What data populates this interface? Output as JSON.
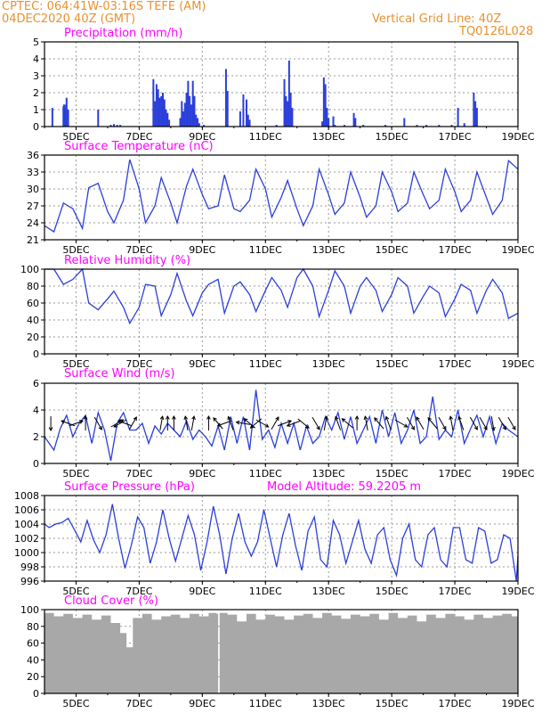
{
  "header": {
    "line1": "CPTEC:   064:41W-03:16S   TEFE (AM)",
    "line2": "04DEC2020 40Z (GMT)",
    "right1": "Vertical Grid Line: 40Z",
    "right2": "TQ0126L028"
  },
  "colors": {
    "header": "#e8912f",
    "title": "#ff00ff",
    "series": "#2b3fd9",
    "cloud": "#a8a8a8",
    "grid": "#9a9a9a"
  },
  "chart_data": [
    {
      "type": "bar",
      "title": "Precipitation (mm/h)",
      "xticks": [
        "5DEC",
        "7DEC",
        "9DEC",
        "11DEC",
        "13DEC",
        "15DEC",
        "17DEC",
        "19DEC"
      ],
      "xrange_days": [
        4.0,
        19.0
      ],
      "ylim": [
        0,
        5
      ],
      "yticks": [
        0,
        1,
        2,
        3,
        4,
        5
      ],
      "grid": true,
      "x": [
        4.25,
        4.6,
        4.62,
        4.65,
        4.68,
        4.7,
        4.75,
        5.7,
        6.1,
        6.2,
        6.3,
        6.4,
        7.45,
        7.5,
        7.55,
        7.6,
        7.65,
        7.7,
        7.75,
        7.8,
        7.85,
        7.9,
        7.95,
        8.3,
        8.35,
        8.4,
        8.45,
        8.5,
        8.55,
        8.6,
        8.65,
        8.7,
        8.75,
        8.8,
        8.85,
        8.9,
        9.05,
        9.75,
        9.8,
        10.2,
        10.3,
        10.4,
        10.45,
        10.5,
        11.35,
        11.6,
        11.65,
        11.7,
        11.75,
        11.8,
        11.85,
        12.8,
        12.85,
        12.9,
        12.95,
        13.0,
        13.15,
        13.2,
        13.5,
        13.8,
        13.85,
        14.1,
        14.8,
        15.4,
        15.8,
        16.1,
        16.5,
        16.9,
        17.1,
        17.3,
        17.6,
        17.65,
        17.7
      ],
      "values": [
        1.1,
        1.2,
        1.3,
        1.1,
        1.3,
        1.7,
        1.0,
        1.0,
        0.1,
        0.15,
        0.1,
        0.1,
        2.8,
        1.5,
        2.5,
        2.2,
        1.7,
        1.8,
        2.0,
        1.6,
        1.0,
        0.8,
        0.4,
        0.5,
        1.5,
        0.9,
        1.4,
        2.0,
        2.7,
        1.8,
        1.3,
        2.7,
        1.8,
        0.7,
        0.5,
        0.2,
        0.1,
        3.4,
        2.1,
        0.9,
        1.9,
        1.6,
        0.7,
        0.4,
        0.1,
        2.8,
        1.8,
        1.5,
        3.9,
        2.0,
        1.1,
        0.3,
        2.9,
        2.5,
        1.1,
        0.5,
        0.6,
        0.1,
        0.1,
        0.8,
        0.5,
        0.1,
        0.1,
        0.5,
        0.1,
        0.1,
        0.1,
        0.1,
        1.1,
        0.2,
        2.0,
        1.5,
        1.1
      ]
    },
    {
      "type": "line",
      "title": "Surface Temperature (nC)",
      "xticks": [
        "5DEC",
        "7DEC",
        "9DEC",
        "11DEC",
        "13DEC",
        "15DEC",
        "17DEC",
        "19DEC"
      ],
      "ylim": [
        21,
        36
      ],
      "yticks": [
        21,
        24,
        27,
        30,
        33,
        36
      ],
      "grid": true,
      "x": [
        4.0,
        4.3,
        4.6,
        4.9,
        5.2,
        5.4,
        5.7,
        6.0,
        6.2,
        6.5,
        6.7,
        7.0,
        7.2,
        7.5,
        7.7,
        8.0,
        8.2,
        8.5,
        8.7,
        9.0,
        9.2,
        9.5,
        9.7,
        10.0,
        10.2,
        10.5,
        10.7,
        11.0,
        11.2,
        11.5,
        11.7,
        12.0,
        12.2,
        12.5,
        12.7,
        13.0,
        13.2,
        13.5,
        13.7,
        14.0,
        14.2,
        14.5,
        14.7,
        15.0,
        15.2,
        15.5,
        15.7,
        16.0,
        16.2,
        16.5,
        16.7,
        17.0,
        17.2,
        17.5,
        17.7,
        18.0,
        18.2,
        18.5,
        18.7,
        19.0
      ],
      "y": [
        23.5,
        22.4,
        27.5,
        26.5,
        23.0,
        30.2,
        31.0,
        26.0,
        24.0,
        28.0,
        35.2,
        30.0,
        24.0,
        27.0,
        32.0,
        27.5,
        24.0,
        30.5,
        33.5,
        29.0,
        26.5,
        27.0,
        32.5,
        26.5,
        26.0,
        28.0,
        33.5,
        30.0,
        25.0,
        28.5,
        31.5,
        26.5,
        23.5,
        27.0,
        33.5,
        29.0,
        25.5,
        27.5,
        33.0,
        28.5,
        25.0,
        27.0,
        33.0,
        29.5,
        26.0,
        27.5,
        33.0,
        29.0,
        26.5,
        28.0,
        33.5,
        29.5,
        26.0,
        28.0,
        33.0,
        28.5,
        25.5,
        28.0,
        35.0,
        33.5
      ]
    },
    {
      "type": "line",
      "title": "Relative Humidity (%)",
      "xticks": [
        "5DEC",
        "7DEC",
        "9DEC",
        "11DEC",
        "13DEC",
        "15DEC",
        "17DEC",
        "19DEC"
      ],
      "ylim": [
        0,
        100
      ],
      "yticks": [
        0,
        20,
        40,
        60,
        80,
        100
      ],
      "grid": true,
      "x": [
        4.0,
        4.3,
        4.6,
        4.9,
        5.2,
        5.4,
        5.7,
        6.0,
        6.2,
        6.5,
        6.7,
        7.0,
        7.2,
        7.5,
        7.7,
        8.0,
        8.2,
        8.5,
        8.7,
        9.0,
        9.2,
        9.5,
        9.7,
        10.0,
        10.2,
        10.5,
        10.7,
        11.0,
        11.2,
        11.5,
        11.7,
        12.0,
        12.2,
        12.5,
        12.7,
        13.0,
        13.2,
        13.5,
        13.7,
        14.0,
        14.2,
        14.5,
        14.7,
        15.0,
        15.2,
        15.5,
        15.7,
        16.0,
        16.2,
        16.5,
        16.7,
        17.0,
        17.2,
        17.5,
        17.7,
        18.0,
        18.2,
        18.5,
        18.7,
        19.0
      ],
      "y": [
        100,
        100,
        82,
        88,
        100,
        60,
        52,
        65,
        74,
        55,
        36,
        55,
        82,
        80,
        45,
        70,
        95,
        62,
        45,
        72,
        82,
        88,
        48,
        80,
        85,
        70,
        50,
        75,
        90,
        75,
        55,
        90,
        100,
        80,
        44,
        75,
        98,
        80,
        48,
        80,
        90,
        75,
        50,
        70,
        90,
        80,
        48,
        68,
        80,
        72,
        44,
        65,
        82,
        75,
        48,
        75,
        88,
        72,
        42,
        48
      ]
    },
    {
      "type": "line",
      "title": "Surface Wind (m/s)",
      "xticks": [
        "5DEC",
        "7DEC",
        "9DEC",
        "11DEC",
        "13DEC",
        "15DEC",
        "17DEC",
        "19DEC"
      ],
      "ylim": [
        0,
        6
      ],
      "yticks": [
        0,
        2,
        4,
        6
      ],
      "grid": true,
      "x": [
        4.0,
        4.3,
        4.5,
        4.7,
        4.9,
        5.1,
        5.3,
        5.5,
        5.7,
        5.9,
        6.1,
        6.3,
        6.5,
        6.7,
        6.9,
        7.1,
        7.3,
        7.5,
        7.7,
        7.9,
        8.1,
        8.3,
        8.5,
        8.7,
        8.9,
        9.1,
        9.3,
        9.5,
        9.7,
        9.9,
        10.1,
        10.3,
        10.5,
        10.7,
        10.9,
        11.1,
        11.3,
        11.5,
        11.7,
        11.9,
        12.1,
        12.3,
        12.5,
        12.7,
        12.9,
        13.1,
        13.3,
        13.5,
        13.7,
        13.9,
        14.1,
        14.3,
        14.5,
        14.7,
        14.9,
        15.1,
        15.3,
        15.5,
        15.7,
        15.9,
        16.1,
        16.3,
        16.5,
        16.7,
        16.9,
        17.1,
        17.3,
        17.5,
        17.7,
        17.9,
        18.1,
        18.3,
        18.5,
        18.7,
        19.0
      ],
      "y": [
        2.0,
        1.0,
        2.6,
        3.6,
        2.0,
        3.0,
        3.6,
        1.5,
        3.8,
        2.5,
        0.2,
        3.0,
        3.8,
        2.5,
        2.5,
        3.0,
        1.5,
        2.8,
        2.2,
        3.0,
        2.5,
        2.0,
        3.2,
        1.8,
        2.5,
        2.0,
        1.3,
        2.8,
        1.0,
        3.5,
        1.5,
        3.5,
        1.0,
        5.5,
        1.8,
        2.5,
        1.2,
        3.0,
        1.5,
        3.0,
        1.0,
        2.8,
        1.5,
        2.0,
        3.5,
        2.5,
        3.8,
        1.8,
        3.5,
        1.5,
        2.5,
        3.5,
        1.5,
        4.0,
        2.0,
        3.8,
        1.5,
        2.5,
        4.0,
        1.5,
        2.0,
        5.0,
        1.8,
        2.5,
        2.0,
        4.0,
        1.5,
        2.6,
        3.6,
        2.0,
        3.5,
        1.5,
        3.0,
        2.5,
        2.0
      ]
    },
    {
      "type": "line",
      "title": "Surface Pressure (hPa)",
      "annotation": "Model Altitude: 59.2205 m",
      "xticks": [
        "5DEC",
        "7DEC",
        "9DEC",
        "11DEC",
        "13DEC",
        "15DEC",
        "17DEC",
        "19DEC"
      ],
      "ylim": [
        996,
        1008
      ],
      "yticks": [
        996,
        998,
        1000,
        1002,
        1004,
        1006,
        1008
      ],
      "grid": true,
      "x": [
        4.0,
        4.15,
        4.35,
        4.55,
        4.75,
        4.95,
        5.15,
        5.35,
        5.55,
        5.75,
        5.95,
        6.15,
        6.35,
        6.55,
        6.75,
        6.95,
        7.15,
        7.35,
        7.55,
        7.75,
        7.95,
        8.15,
        8.35,
        8.55,
        8.75,
        8.95,
        9.15,
        9.35,
        9.55,
        9.75,
        9.95,
        10.15,
        10.35,
        10.55,
        10.75,
        10.95,
        11.15,
        11.35,
        11.55,
        11.75,
        11.95,
        12.15,
        12.35,
        12.55,
        12.75,
        12.95,
        13.15,
        13.35,
        13.55,
        13.75,
        13.95,
        14.15,
        14.35,
        14.55,
        14.75,
        14.95,
        15.15,
        15.35,
        15.55,
        15.75,
        15.95,
        16.15,
        16.35,
        16.55,
        16.75,
        16.95,
        17.15,
        17.35,
        17.55,
        17.75,
        17.95,
        18.15,
        18.35,
        18.55,
        18.75,
        18.95,
        19.0
      ],
      "y": [
        1004.0,
        1003.5,
        1004.0,
        1004.2,
        1004.8,
        1003.2,
        1001.5,
        1004.5,
        1001.8,
        1000.0,
        1002.5,
        1006.8,
        1002.0,
        997.8,
        1001.0,
        1005.0,
        1003.5,
        998.5,
        1001.5,
        1006.0,
        1002.0,
        998.8,
        1002.0,
        1005.2,
        1002.5,
        997.5,
        1001.5,
        1006.5,
        1002.5,
        997.0,
        1002.0,
        1005.5,
        1001.5,
        999.5,
        1001.5,
        1006.0,
        1002.0,
        998.0,
        1002.5,
        1005.5,
        1001.0,
        997.5,
        1003.0,
        1005.0,
        999.0,
        998.0,
        1004.5,
        1002.5,
        998.5,
        1001.5,
        1004.5,
        1000.5,
        998.5,
        1002.5,
        1003.5,
        999.0,
        996.8,
        1002.0,
        1004.0,
        999.0,
        998.0,
        1002.5,
        1003.5,
        999.0,
        998.0,
        1003.5,
        1003.5,
        999.0,
        998.5,
        1003.5,
        1003.0,
        998.5,
        999.0,
        1002.5,
        1002.0,
        996.0,
        999.5
      ]
    },
    {
      "type": "area",
      "title": "Cloud Cover (%)",
      "xticks": [
        "5DEC",
        "7DEC",
        "9DEC",
        "11DEC",
        "13DEC",
        "15DEC",
        "17DEC",
        "19DEC"
      ],
      "ylim": [
        0,
        100
      ],
      "yticks": [
        0,
        20,
        40,
        60,
        80,
        100
      ],
      "grid": true,
      "x": [
        4.0,
        4.3,
        4.6,
        4.9,
        5.2,
        5.5,
        5.8,
        6.1,
        6.4,
        6.6,
        6.8,
        7.1,
        7.4,
        7.7,
        8.0,
        8.3,
        8.6,
        8.9,
        9.2,
        9.45,
        9.5,
        9.55,
        9.8,
        10.1,
        10.4,
        10.7,
        11.0,
        11.3,
        11.6,
        11.9,
        12.2,
        12.5,
        12.8,
        13.1,
        13.4,
        13.7,
        14.0,
        14.3,
        14.6,
        14.9,
        15.2,
        15.5,
        15.8,
        16.1,
        16.4,
        16.7,
        17.0,
        17.3,
        17.6,
        17.9,
        18.2,
        18.5,
        18.8,
        19.0
      ],
      "y": [
        96,
        92,
        95,
        90,
        94,
        88,
        93,
        84,
        72,
        55,
        90,
        95,
        88,
        92,
        94,
        90,
        95,
        92,
        96,
        95,
        0,
        96,
        94,
        86,
        95,
        88,
        94,
        92,
        88,
        93,
        95,
        90,
        96,
        93,
        89,
        94,
        92,
        95,
        88,
        96,
        90,
        93,
        86,
        94,
        90,
        95,
        92,
        88,
        94,
        90,
        93,
        95,
        92,
        94
      ]
    }
  ],
  "wind_arrows": {
    "x": [
      4.2,
      4.75,
      5.0,
      5.3,
      5.7,
      6.3,
      6.4,
      6.55,
      6.8,
      7.7,
      7.9,
      8.1,
      8.5,
      8.7,
      9.2,
      9.5,
      9.7,
      9.9,
      10.3,
      10.5,
      10.7,
      10.9,
      11.3,
      11.6,
      11.9,
      12.2,
      12.6,
      12.9,
      13.3,
      13.6,
      13.9,
      14.2,
      14.6,
      14.9,
      15.3,
      15.6,
      15.9,
      16.3,
      16.6,
      16.9,
      17.2,
      17.6,
      17.9,
      18.2,
      18.5,
      18.8
    ],
    "dir": [
      270,
      160,
      20,
      90,
      300,
      30,
      210,
      160,
      60,
      80,
      90,
      90,
      100,
      80,
      90,
      130,
      200,
      110,
      170,
      140,
      220,
      330,
      60,
      20,
      200,
      320,
      300,
      80,
      110,
      140,
      90,
      100,
      130,
      110,
      330,
      300,
      120,
      130,
      300,
      100,
      110,
      300,
      300,
      280,
      300,
      300
    ]
  }
}
